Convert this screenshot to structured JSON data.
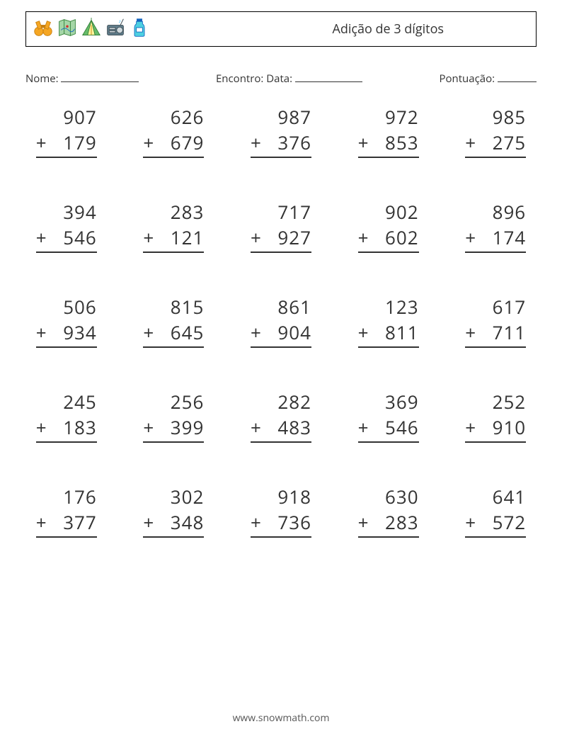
{
  "header": {
    "title": "Adição de 3 dígitos",
    "icons": [
      "binoculars-icon",
      "map-icon",
      "tent-icon",
      "radio-icon",
      "water-bottle-icon"
    ]
  },
  "meta": {
    "name_label": "Nome:",
    "encounter_label": "Encontro: Data:",
    "score_label": "Pontuação:"
  },
  "worksheet": {
    "type": "math-worksheet",
    "operator": "+",
    "columns": 5,
    "rows": 5,
    "digit_count": 3,
    "font_size_pt": 20,
    "text_color": "#333333",
    "underline_color": "#333333",
    "background_color": "#ffffff",
    "problems": [
      {
        "a": 907,
        "b": 179
      },
      {
        "a": 626,
        "b": 679
      },
      {
        "a": 987,
        "b": 376
      },
      {
        "a": 972,
        "b": 853
      },
      {
        "a": 985,
        "b": 275
      },
      {
        "a": 394,
        "b": 546
      },
      {
        "a": 283,
        "b": 121
      },
      {
        "a": 717,
        "b": 927
      },
      {
        "a": 902,
        "b": 602
      },
      {
        "a": 896,
        "b": 174
      },
      {
        "a": 506,
        "b": 934
      },
      {
        "a": 815,
        "b": 645
      },
      {
        "a": 861,
        "b": 904
      },
      {
        "a": 123,
        "b": 811
      },
      {
        "a": 617,
        "b": 711
      },
      {
        "a": 245,
        "b": 183
      },
      {
        "a": 256,
        "b": 399
      },
      {
        "a": 282,
        "b": 483
      },
      {
        "a": 369,
        "b": 546
      },
      {
        "a": 252,
        "b": 910
      },
      {
        "a": 176,
        "b": 377
      },
      {
        "a": 302,
        "b": 348
      },
      {
        "a": 918,
        "b": 736
      },
      {
        "a": 630,
        "b": 283
      },
      {
        "a": 641,
        "b": 572
      }
    ]
  },
  "footer": {
    "text": "www.snowmath.com"
  },
  "palette": {
    "orange": "#f5a623",
    "green": "#4caf50",
    "green_dark": "#2e7d32",
    "blue": "#2196f3",
    "blue_dark": "#1565c0",
    "grey": "#607d8b",
    "cyan": "#4dd0e1"
  }
}
